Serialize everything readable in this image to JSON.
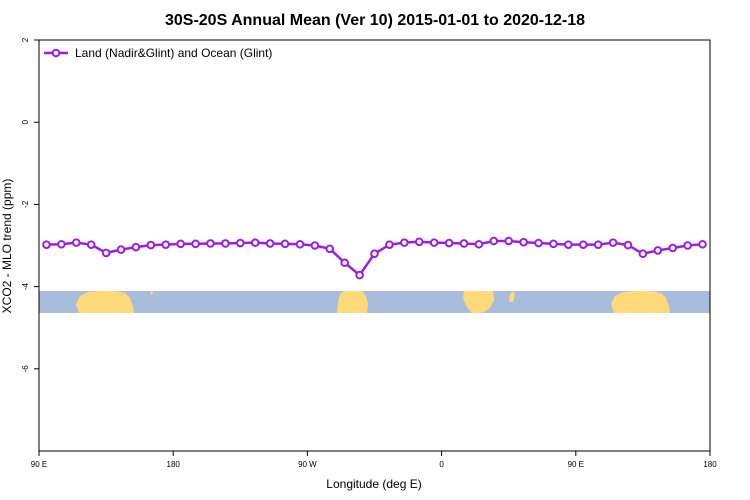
{
  "chart_data": {
    "type": "line",
    "title": "30S-20S Annual Mean (Ver 10)   2015-01-01 to 2020-12-18",
    "xlabel": "Longitude (deg E)",
    "ylabel": "XCO2 - MLO trend (ppm)",
    "x_ticks": [
      {
        "value": 90,
        "label": "90 E"
      },
      {
        "value": 180,
        "label": "180"
      },
      {
        "value": 270,
        "label": "90 W"
      },
      {
        "value": 360,
        "label": "0"
      },
      {
        "value": 450,
        "label": "90 E"
      },
      {
        "value": 540,
        "label": "180"
      }
    ],
    "y_ticks": [
      {
        "value": 2,
        "label": "2"
      },
      {
        "value": 0,
        "label": "0"
      },
      {
        "value": -2,
        "label": "-2"
      },
      {
        "value": -4,
        "label": "-4"
      },
      {
        "value": -6,
        "label": "-6"
      }
    ],
    "xlim": [
      90,
      540
    ],
    "ylim": [
      -8,
      2
    ],
    "grid": false,
    "legend_position": "top-left",
    "series": [
      {
        "name": "Land (Nadir&Glint) and Ocean (Glint)",
        "color": "#9b1ee0",
        "x": [
          95,
          105,
          115,
          125,
          135,
          145,
          155,
          165,
          175,
          185,
          195,
          205,
          215,
          225,
          235,
          245,
          255,
          265,
          275,
          285,
          295,
          305,
          315,
          325,
          335,
          345,
          355,
          365,
          375,
          385,
          395,
          405,
          415,
          425,
          435,
          445,
          455,
          465,
          475,
          485,
          495,
          505,
          515,
          525,
          535
        ],
        "y": [
          -2.98,
          -2.97,
          -2.93,
          -2.98,
          -3.18,
          -3.1,
          -3.04,
          -2.99,
          -2.98,
          -2.96,
          -2.96,
          -2.95,
          -2.95,
          -2.94,
          -2.93,
          -2.95,
          -2.96,
          -2.97,
          -3.0,
          -3.08,
          -3.42,
          -3.72,
          -3.2,
          -2.98,
          -2.93,
          -2.91,
          -2.93,
          -2.94,
          -2.95,
          -2.97,
          -2.89,
          -2.89,
          -2.92,
          -2.94,
          -2.96,
          -2.98,
          -2.98,
          -2.98,
          -2.93,
          -2.99,
          -3.2,
          -3.12,
          -3.06,
          -3.0,
          -2.97
        ]
      }
    ]
  },
  "colors": {
    "ocean": "#a8bcdc",
    "land": "#ffd97a"
  }
}
